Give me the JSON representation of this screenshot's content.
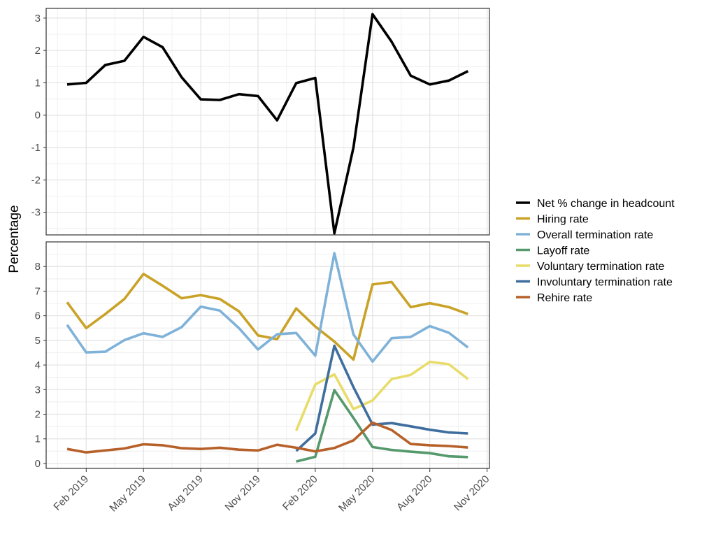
{
  "chart_data": {
    "type": "line",
    "ylabel": "Percentage",
    "x": [
      "Jan 2019",
      "Feb 2019",
      "Mar 2019",
      "Apr 2019",
      "May 2019",
      "Jun 2019",
      "Jul 2019",
      "Aug 2019",
      "Sep 2019",
      "Oct 2019",
      "Nov 2019",
      "Dec 2019",
      "Jan 2020",
      "Feb 2020",
      "Mar 2020",
      "Apr 2020",
      "May 2020",
      "Jun 2020",
      "Jul 2020",
      "Aug 2020",
      "Sep 2020",
      "Oct 2020"
    ],
    "x_tick_labels": [
      "Feb 2019",
      "May 2019",
      "Aug 2019",
      "Nov 2019",
      "Feb 2020",
      "May 2020",
      "Aug 2020",
      "Nov 2020"
    ],
    "legend": {
      "position": "right"
    },
    "panels": [
      {
        "ylim": [
          -3.7,
          3.3
        ],
        "y_ticks": [
          3,
          2,
          1,
          0,
          -1,
          -2,
          -3
        ],
        "series": [
          {
            "name": "Net % change in headcount",
            "color": "#000000",
            "values": [
              0.95,
              1.0,
              1.55,
              1.68,
              2.42,
              2.1,
              1.17,
              0.49,
              0.47,
              0.65,
              0.59,
              -0.16,
              0.99,
              1.15,
              -3.65,
              -1.0,
              3.12,
              2.27,
              1.22,
              0.95,
              1.07,
              1.36
            ]
          }
        ]
      },
      {
        "ylim": [
          -0.2,
          9.0
        ],
        "y_ticks": [
          0,
          1,
          2,
          3,
          4,
          5,
          6,
          7,
          8
        ],
        "series": [
          {
            "name": "Hiring rate",
            "color": "#C9A227",
            "values": [
              6.55,
              5.5,
              6.07,
              6.68,
              7.7,
              7.22,
              6.71,
              6.84,
              6.68,
              6.18,
              5.2,
              5.05,
              6.3,
              5.56,
              4.95,
              4.22,
              7.27,
              7.37,
              6.35,
              6.51,
              6.35,
              6.07
            ]
          },
          {
            "name": "Overall termination rate",
            "color": "#7FB2D9",
            "values": [
              5.63,
              4.51,
              4.54,
              5.01,
              5.29,
              5.14,
              5.54,
              6.37,
              6.21,
              5.5,
              4.63,
              5.25,
              5.3,
              4.38,
              8.54,
              5.24,
              4.14,
              5.09,
              5.14,
              5.58,
              5.31,
              4.71
            ]
          },
          {
            "name": "Layoff rate",
            "color": "#55996D",
            "values": [
              null,
              null,
              null,
              null,
              null,
              null,
              null,
              null,
              null,
              null,
              null,
              null,
              0.08,
              0.27,
              2.98,
              1.85,
              0.67,
              0.55,
              0.48,
              0.42,
              0.29,
              0.26
            ]
          },
          {
            "name": "Voluntary termination rate",
            "color": "#E8DC6A",
            "values": [
              null,
              null,
              null,
              null,
              null,
              null,
              null,
              null,
              null,
              null,
              null,
              null,
              1.33,
              3.21,
              3.62,
              2.21,
              2.56,
              3.43,
              3.6,
              4.13,
              4.03,
              3.43
            ]
          },
          {
            "name": "Involuntary termination rate",
            "color": "#3F6E9E",
            "values": [
              null,
              null,
              null,
              null,
              null,
              null,
              null,
              null,
              null,
              null,
              null,
              null,
              0.51,
              1.22,
              4.78,
              3.1,
              1.58,
              1.64,
              1.51,
              1.37,
              1.26,
              1.22
            ]
          },
          {
            "name": "Rehire rate",
            "color": "#B7612A",
            "values": [
              0.59,
              0.45,
              0.53,
              0.61,
              0.78,
              0.74,
              0.62,
              0.59,
              0.64,
              0.56,
              0.53,
              0.76,
              0.64,
              0.49,
              0.63,
              0.94,
              1.66,
              1.36,
              0.79,
              0.74,
              0.71,
              0.65
            ]
          }
        ]
      }
    ],
    "legend_entries": [
      {
        "label": "Net % change in headcount",
        "color": "#000000"
      },
      {
        "label": "Hiring rate",
        "color": "#C9A227"
      },
      {
        "label": "Overall termination rate",
        "color": "#7FB2D9"
      },
      {
        "label": "Layoff rate",
        "color": "#55996D"
      },
      {
        "label": "Voluntary termination rate",
        "color": "#E8DC6A"
      },
      {
        "label": "Involuntary termination rate",
        "color": "#3F6E9E"
      },
      {
        "label": "Rehire rate",
        "color": "#B7612A"
      }
    ]
  }
}
